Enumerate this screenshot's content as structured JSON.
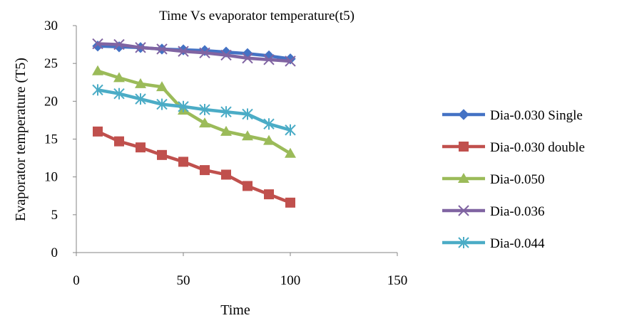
{
  "chart_data": {
    "type": "line",
    "title": "Time Vs evaporator temperature(t5)",
    "xlabel": "Time",
    "ylabel": "Evaporator temperature (T5)",
    "xlim": [
      0,
      150
    ],
    "ylim": [
      0,
      30
    ],
    "xticks": [
      0,
      50,
      100,
      150
    ],
    "yticks": [
      0,
      5,
      10,
      15,
      20,
      25,
      30
    ],
    "grid": false,
    "legend_position": "right",
    "x": [
      10,
      20,
      30,
      40,
      50,
      60,
      70,
      80,
      90,
      100
    ],
    "series": [
      {
        "name": "Dia-0.030 Single",
        "color": "#4472C4",
        "marker": "diamond",
        "values": [
          27.3,
          27.2,
          27.1,
          26.9,
          26.8,
          26.7,
          26.5,
          26.3,
          26.0,
          25.6
        ]
      },
      {
        "name": "Dia-0.030 double",
        "color": "#C0504D",
        "marker": "square",
        "values": [
          16.0,
          14.7,
          13.9,
          12.9,
          12.0,
          10.9,
          10.3,
          8.8,
          7.7,
          6.6
        ]
      },
      {
        "name": "Dia-0.050",
        "color": "#9BBB59",
        "marker": "triangle",
        "values": [
          24.0,
          23.1,
          22.3,
          21.9,
          18.8,
          17.1,
          16.0,
          15.4,
          14.8,
          13.1
        ]
      },
      {
        "name": "Dia-0.036",
        "color": "#8064A2",
        "marker": "x",
        "values": [
          27.6,
          27.5,
          27.1,
          26.9,
          26.6,
          26.4,
          26.1,
          25.7,
          25.5,
          25.3
        ]
      },
      {
        "name": "Dia-0.044",
        "color": "#4BACC6",
        "marker": "asterisk",
        "values": [
          21.5,
          21.0,
          20.3,
          19.6,
          19.3,
          18.9,
          18.6,
          18.3,
          17.0,
          16.2
        ]
      }
    ]
  }
}
